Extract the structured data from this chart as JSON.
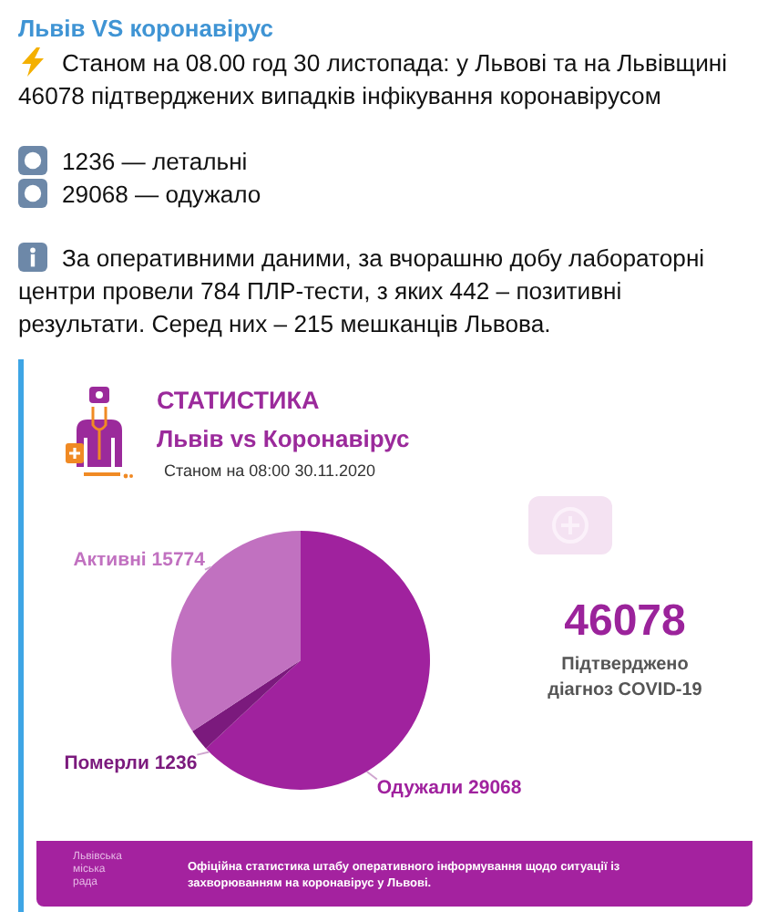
{
  "chart_data": {
    "type": "pie",
    "title": "СТАТИСТИКА",
    "subtitle": "Львів vs Коронавірус",
    "categories": [
      "Одужали",
      "Померли",
      "Активні"
    ],
    "values": [
      29068,
      1236,
      15774
    ],
    "colors": [
      "#a0229e",
      "#7b1a7d",
      "#c171c0"
    ],
    "data_labels": true,
    "annotations": [
      "Львів VS коронавірус",
      "Станом на 08.00 год 30 листопада: у Львові та на Львівщині 46078 підтверджених випадків інфікування коронавірусом",
      "1236 — летальні",
      "29068 — одужало",
      "За оперативними даними, за вчорашню добу лабораторні центри провели 784 ПЛР-тести, з яких 442 – позитивні результати. Серед них – 215 мешканців Львова.",
      "Станом на 08:00 30.11.2020",
      "46078",
      "Підтверджено діагноз COVID-19",
      "Львівська міська рада",
      "Офіційна статистика штабу оперативного інформування щодо ситуації із захворюванням на коронавірус у Львові."
    ]
  }
}
